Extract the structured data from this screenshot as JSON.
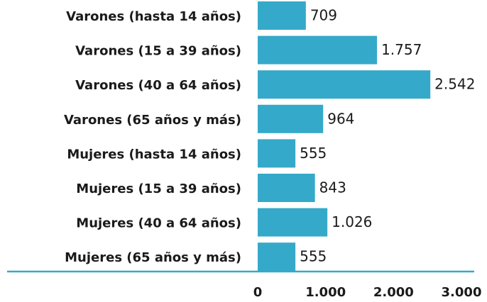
{
  "chart_data": {
    "type": "bar",
    "orientation": "horizontal",
    "categories": [
      "Varones (hasta 14 años)",
      "Varones (15 a 39 años)",
      "Varones (40 a 64 años)",
      "Varones (65 años y más)",
      "Mujeres (hasta 14 años)",
      "Mujeres (15 a 39 años)",
      "Mujeres (40 a 64 años)",
      "Mujeres (65 años y más)"
    ],
    "values": [
      709,
      1757,
      2542,
      964,
      555,
      843,
      1026,
      555
    ],
    "value_labels": [
      "709",
      "1.757",
      "2.542",
      "964",
      "555",
      "843",
      "1.026",
      "555"
    ],
    "color": "#35a9c9",
    "xlim": [
      0,
      3000
    ],
    "xticks": [
      0,
      {
        "value": 1000,
        "label": "1.000"
      },
      {
        "value": 2000,
        "label": "2.000"
      },
      {
        "value": 3000,
        "label": "3.000"
      }
    ],
    "grid": false
  }
}
